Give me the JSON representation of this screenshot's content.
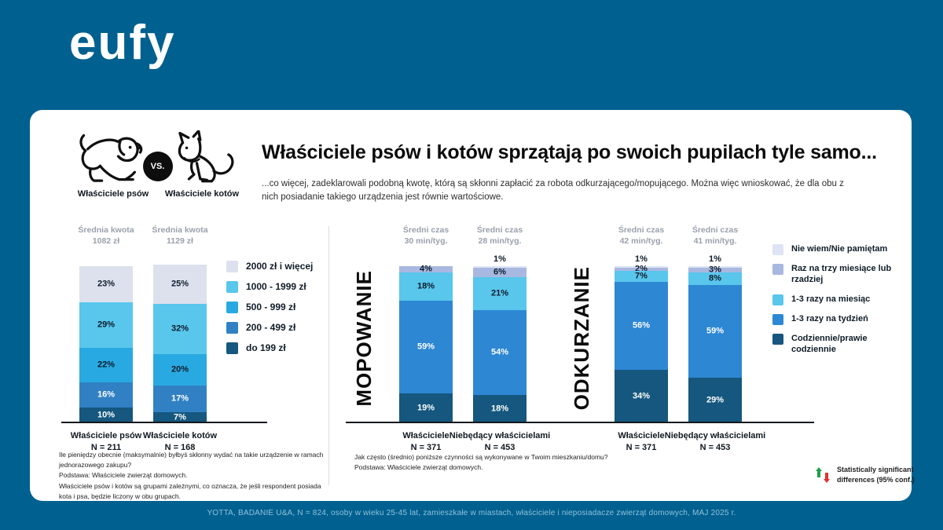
{
  "brand": {
    "logo_text": "eufy"
  },
  "header": {
    "dog_label": "Właściciele psów",
    "vs_label": "VS.",
    "cat_label": "Właściciele kotów",
    "title": "Właściciele psów i kotów sprzątają po swoich pupilach tyle samo...",
    "subtitle": "...co więcej, zadeklarowali podobną kwotę, którą są skłonni zapłacić za robota odkurzającego/mopującego. Można więc wnioskować, że dla obu z nich posiadanie takiego urządzenia jest równie wartościowe."
  },
  "chart_data": [
    {
      "type": "bar",
      "stacked": true,
      "unit": "%",
      "ylim": [
        0,
        100
      ],
      "section_title": "",
      "categories": [
        "Właściciele psów",
        "Właściciele kotów"
      ],
      "column_headers": [
        [
          "Średnia kwota",
          "1082 zł"
        ],
        [
          "Średnia kwota",
          "1129 zł"
        ]
      ],
      "column_ns": [
        "N = 211",
        "N = 168"
      ],
      "series": [
        {
          "name": "2000 zł i więcej",
          "color": "#dce1ed",
          "values": [
            23,
            25
          ]
        },
        {
          "name": "1000 - 1999 zł",
          "color": "#59c6ec",
          "values": [
            29,
            32
          ]
        },
        {
          "name": "500 - 999 zł",
          "color": "#29a9e1",
          "values": [
            22,
            20
          ]
        },
        {
          "name": "200 - 499 zł",
          "color": "#3180c4",
          "values": [
            16,
            17
          ]
        },
        {
          "name": "do 199 zł",
          "color": "#15577e",
          "values": [
            10,
            7
          ]
        }
      ]
    },
    {
      "type": "bar",
      "stacked": true,
      "unit": "%",
      "ylim": [
        0,
        100
      ],
      "section_title": "MOPOWANIE",
      "categories": [
        "Właściciele",
        "Niebędący właścicielami"
      ],
      "column_headers": [
        [
          "Średni czas",
          "30 min/tyg."
        ],
        [
          "Średni czas",
          "28 min/tyg."
        ]
      ],
      "column_ns": [
        "N = 371",
        "N = 453"
      ],
      "series": [
        {
          "name": "Nie wiem/Nie pamiętam",
          "color": "#dee4f5",
          "values": [
            0,
            1
          ]
        },
        {
          "name": "Raz na trzy miesiące lub rzadziej",
          "color": "#a9b8e0",
          "values": [
            4,
            6
          ]
        },
        {
          "name": "1-3 razy na miesiąc",
          "color": "#59c6ec",
          "values": [
            18,
            21
          ]
        },
        {
          "name": "1-3 razy na tydzień",
          "color": "#2d87d3",
          "values": [
            59,
            54
          ]
        },
        {
          "name": "Codziennie/prawie codziennie",
          "color": "#15577e",
          "values": [
            19,
            18
          ]
        }
      ]
    },
    {
      "type": "bar",
      "stacked": true,
      "unit": "%",
      "ylim": [
        0,
        100
      ],
      "section_title": "ODKURZANIE",
      "categories": [
        "Właściciele",
        "Niebędący właścicielami"
      ],
      "column_headers": [
        [
          "Średni czas",
          "42 min/tyg."
        ],
        [
          "Średni czas",
          "41 min/tyg."
        ]
      ],
      "column_ns": [
        "N = 371",
        "N = 453"
      ],
      "series": [
        {
          "name": "Nie wiem/Nie pamiętam",
          "color": "#dee4f5",
          "values": [
            1,
            1
          ]
        },
        {
          "name": "Raz na trzy miesiące lub rzadziej",
          "color": "#a9b8e0",
          "values": [
            2,
            3
          ]
        },
        {
          "name": "1-3 razy na miesiąc",
          "color": "#59c6ec",
          "values": [
            7,
            8
          ]
        },
        {
          "name": "1-3 razy na tydzień",
          "color": "#2d87d3",
          "values": [
            56,
            59
          ]
        },
        {
          "name": "Codziennie/prawie codziennie",
          "color": "#15577e",
          "values": [
            34,
            29
          ]
        }
      ]
    }
  ],
  "footnotes": {
    "left_lines": [
      "Ile pieniędzy obecnie (maksymalnie) byłbyś skłonny wydać na takie urządzenie w ramach jednorazowego zakupu?",
      "Podstawa: Właściciele zwierząt domowych.",
      "Właściciele psów i kotów są grupami zależnymi, co oznacza, że jeśli respondent posiada kota i psa, będzie liczony w obu grupach."
    ],
    "middle_lines": [
      "Jak często (średnio) poniższe czynności są wykonywane w Twoim mieszkaniu/domu?",
      "Podstawa: Właściciele zwierząt domowych."
    ]
  },
  "significance": {
    "label": "Statistically significant differences (95% conf.)",
    "up_color": "#21a04a",
    "down_color": "#e03131"
  },
  "footer": {
    "text": "YOTTA, BADANIE U&A, N = 824, osoby w wieku 25-45 lat, zamieszkałe w miastach, właściciele i nieposiadacze zwierząt domowych, MAJ 2025 r."
  }
}
